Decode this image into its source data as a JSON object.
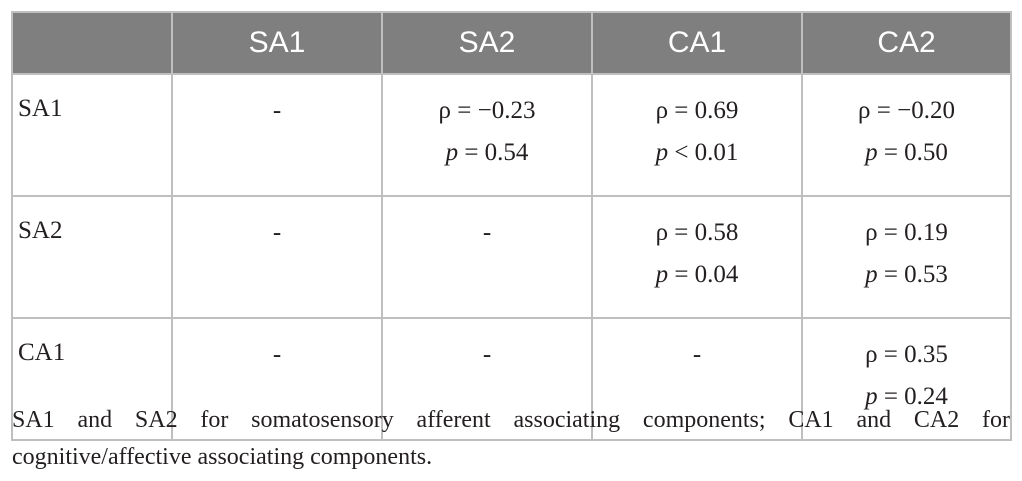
{
  "table": {
    "header": [
      "",
      "SA1",
      "SA2",
      "CA1",
      "CA2"
    ],
    "rows": [
      {
        "label": "SA1",
        "cells": [
          {
            "dash": "-"
          },
          {
            "rho": "ρ = −0.23",
            "p_sym": "p",
            "p_rest": " = 0.54"
          },
          {
            "rho": "ρ = 0.69",
            "p_sym": "p",
            "p_rest": " < 0.01"
          },
          {
            "rho": "ρ = −0.20",
            "p_sym": "p",
            "p_rest": " = 0.50"
          }
        ]
      },
      {
        "label": "SA2",
        "cells": [
          {
            "dash": "-"
          },
          {
            "dash": "-"
          },
          {
            "rho": "ρ = 0.58",
            "p_sym": "p",
            "p_rest": " = 0.04"
          },
          {
            "rho": "ρ = 0.19",
            "p_sym": "p",
            "p_rest": " = 0.53"
          }
        ]
      },
      {
        "label": "CA1",
        "cells": [
          {
            "dash": "-"
          },
          {
            "dash": "-"
          },
          {
            "dash": "-"
          },
          {
            "rho": "ρ = 0.35",
            "p_sym": "p",
            "p_rest": " = 0.24"
          }
        ]
      }
    ]
  },
  "footnote": "SA1 and SA2 for somatosensory afferent associating components; CA1 and CA2 for cognitive/affective associating components."
}
